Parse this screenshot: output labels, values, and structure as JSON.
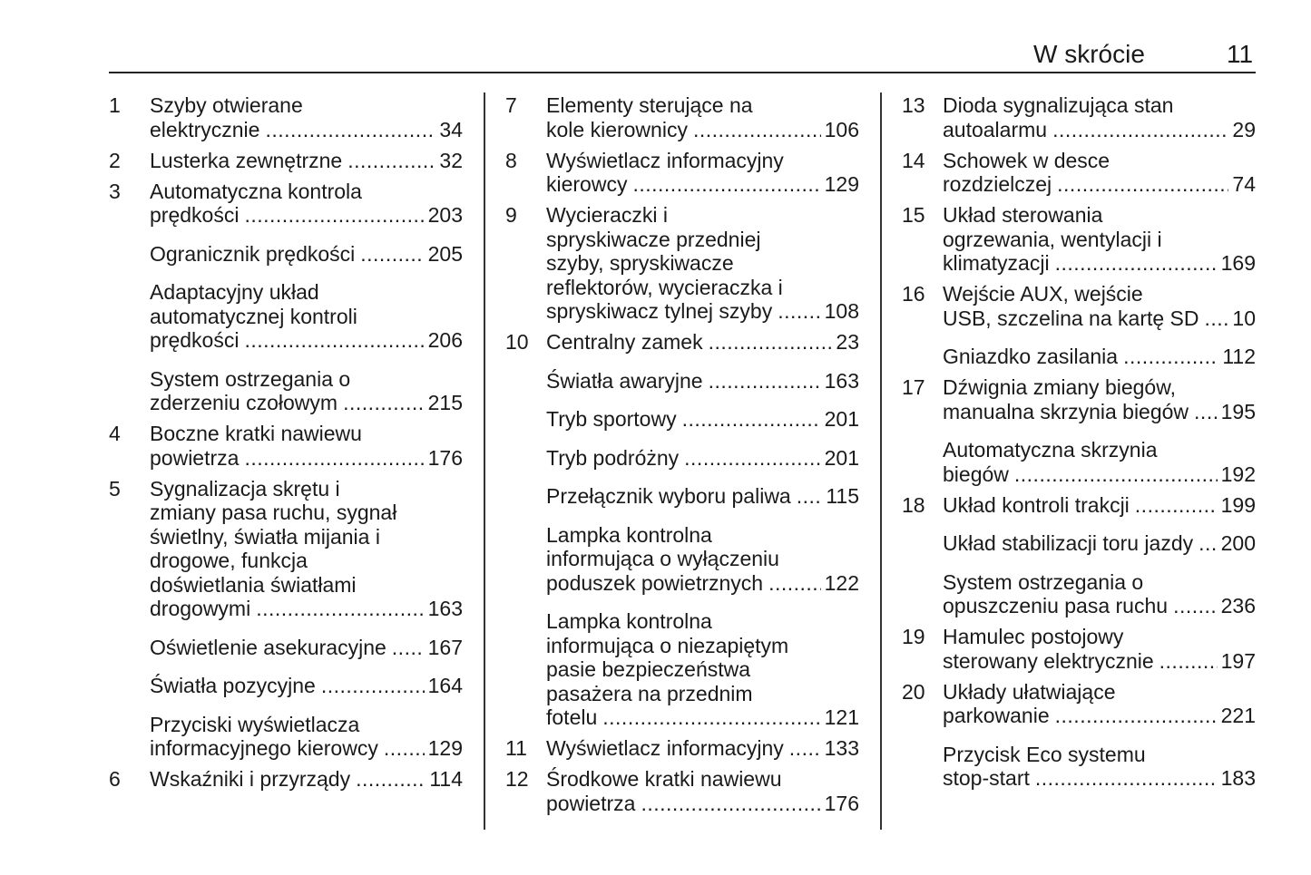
{
  "header": {
    "title": "W skrócie",
    "page_number": "11"
  },
  "columns": [
    [
      {
        "num": "1",
        "lines": [
          "Szyby otwierane",
          "elektrycznie"
        ],
        "page": "34"
      },
      {
        "num": "2",
        "lines": [
          "Lusterka zewnętrzne"
        ],
        "page": "32"
      },
      {
        "num": "3",
        "lines": [
          "Automatyczna kontrola",
          "prędkości"
        ],
        "page": "203"
      },
      {
        "num": "",
        "lines": [
          "Ogranicznik prędkości"
        ],
        "page": "205"
      },
      {
        "num": "",
        "lines": [
          "Adaptacyjny układ",
          "automatycznej kontroli",
          "prędkości"
        ],
        "page": "206"
      },
      {
        "num": "",
        "lines": [
          "System ostrzegania o",
          "zderzeniu czołowym"
        ],
        "page": "215"
      },
      {
        "num": "4",
        "lines": [
          "Boczne kratki nawiewu",
          "powietrza"
        ],
        "page": "176"
      },
      {
        "num": "5",
        "lines": [
          "Sygnalizacja skrętu i",
          "zmiany pasa ruchu, sygnał",
          "świetlny, światła mijania i",
          "drogowe, funkcja",
          "doświetlania światłami",
          "drogowymi"
        ],
        "page": "163"
      },
      {
        "num": "",
        "lines": [
          "Oświetlenie asekuracyjne"
        ],
        "page": "167"
      },
      {
        "num": "",
        "lines": [
          "Światła pozycyjne"
        ],
        "page": "164"
      },
      {
        "num": "",
        "lines": [
          "Przyciski wyświetlacza",
          "informacyjnego kierowcy"
        ],
        "page": "129"
      },
      {
        "num": "6",
        "lines": [
          "Wskaźniki i przyrządy"
        ],
        "page": "114"
      }
    ],
    [
      {
        "num": "7",
        "lines": [
          "Elementy sterujące na",
          "kole kierownicy"
        ],
        "page": "106"
      },
      {
        "num": "8",
        "lines": [
          "Wyświetlacz informacyjny",
          "kierowcy"
        ],
        "page": "129"
      },
      {
        "num": "9",
        "lines": [
          "Wycieraczki i",
          "spryskiwacze przedniej",
          "szyby, spryskiwacze",
          "reflektorów, wycieraczka i",
          "spryskiwacz tylnej szyby"
        ],
        "page": "108"
      },
      {
        "num": "10",
        "lines": [
          "Centralny zamek"
        ],
        "page": "23"
      },
      {
        "num": "",
        "lines": [
          "Światła awaryjne"
        ],
        "page": "163"
      },
      {
        "num": "",
        "lines": [
          "Tryb sportowy"
        ],
        "page": "201"
      },
      {
        "num": "",
        "lines": [
          "Tryb podróżny"
        ],
        "page": "201"
      },
      {
        "num": "",
        "lines": [
          "Przełącznik wyboru paliwa"
        ],
        "page": "115"
      },
      {
        "num": "",
        "lines": [
          "Lampka kontrolna",
          "informująca o wyłączeniu",
          "poduszek powietrznych"
        ],
        "page": "122"
      },
      {
        "num": "",
        "lines": [
          "Lampka kontrolna",
          "informująca o niezapiętym",
          "pasie bezpieczeństwa",
          "pasażera na przednim",
          "fotelu"
        ],
        "page": "121"
      },
      {
        "num": "11",
        "lines": [
          "Wyświetlacz informacyjny"
        ],
        "page": "133"
      },
      {
        "num": "12",
        "lines": [
          "Środkowe kratki nawiewu",
          "powietrza"
        ],
        "page": "176"
      }
    ],
    [
      {
        "num": "13",
        "lines": [
          "Dioda sygnalizująca stan",
          "autoalarmu"
        ],
        "page": "29"
      },
      {
        "num": "14",
        "lines": [
          "Schowek w desce",
          "rozdzielczej"
        ],
        "page": "74"
      },
      {
        "num": "15",
        "lines": [
          "Układ sterowania",
          "ogrzewania, wentylacji i",
          "klimatyzacji"
        ],
        "page": "169"
      },
      {
        "num": "16",
        "lines": [
          "Wejście AUX, wejście",
          "USB, szczelina na kartę SD"
        ],
        "page": "10"
      },
      {
        "num": "",
        "lines": [
          "Gniazdko zasilania"
        ],
        "page": "112"
      },
      {
        "num": "17",
        "lines": [
          "Dźwignia zmiany biegów,",
          "manualna skrzynia biegów"
        ],
        "page": "195"
      },
      {
        "num": "",
        "lines": [
          "Automatyczna skrzynia",
          "biegów"
        ],
        "page": "192"
      },
      {
        "num": "18",
        "lines": [
          "Układ kontroli trakcji"
        ],
        "page": "199"
      },
      {
        "num": "",
        "lines": [
          "Układ stabilizacji toru jazdy"
        ],
        "page": "200"
      },
      {
        "num": "",
        "lines": [
          "System ostrzegania o",
          "opuszczeniu pasa ruchu"
        ],
        "page": "236"
      },
      {
        "num": "19",
        "lines": [
          "Hamulec postojowy",
          "sterowany elektrycznie"
        ],
        "page": "197"
      },
      {
        "num": "20",
        "lines": [
          "Układy ułatwiające",
          "parkowanie"
        ],
        "page": "221"
      },
      {
        "num": "",
        "lines": [
          "Przycisk Eco systemu",
          "stop-start"
        ],
        "page": "183"
      }
    ]
  ]
}
